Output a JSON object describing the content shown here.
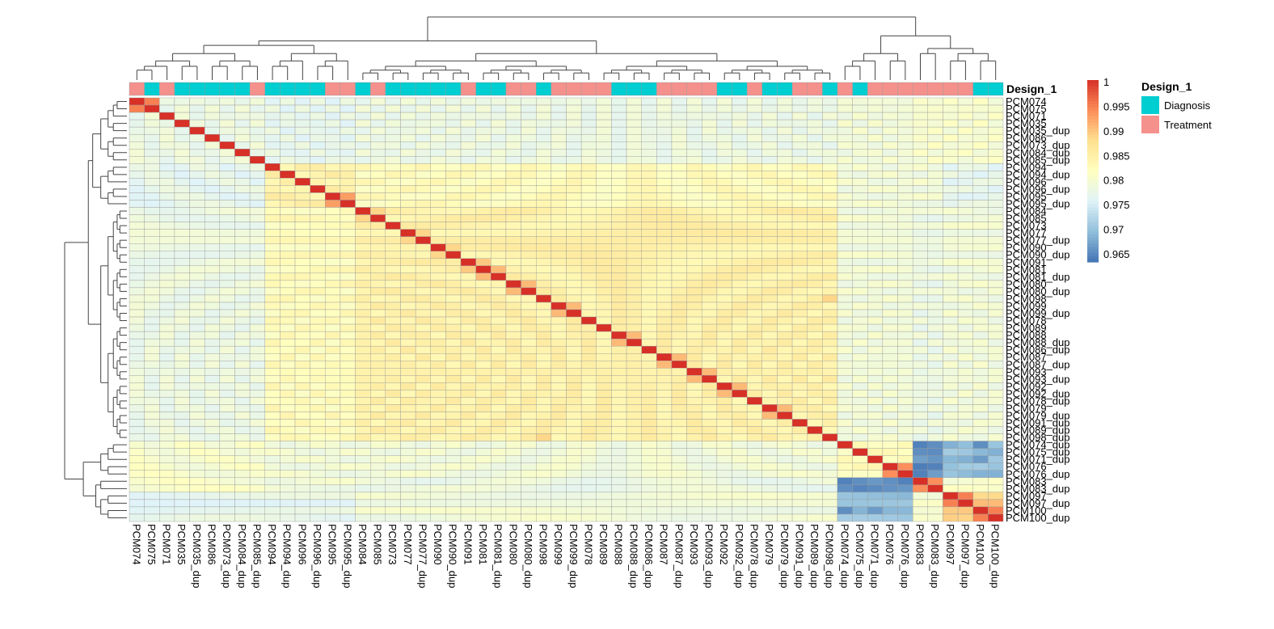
{
  "chart_data": {
    "type": "heatmap",
    "samples": [
      "PCM074",
      "PCM075",
      "PCM071",
      "PCM035",
      "PCM035_dup",
      "PCM086",
      "PCM073_dup",
      "PCM084_dup",
      "PCM085_dup",
      "PCM094",
      "PCM094_dup",
      "PCM096",
      "PCM096_dup",
      "PCM095",
      "PCM095_dup",
      "PCM084",
      "PCM085",
      "PCM073",
      "PCM077",
      "PCM077_dup",
      "PCM090",
      "PCM090_dup",
      "PCM091",
      "PCM081",
      "PCM081_dup",
      "PCM080",
      "PCM080_dup",
      "PCM098",
      "PCM099",
      "PCM099_dup",
      "PCM078",
      "PCM089",
      "PCM088",
      "PCM088_dup",
      "PCM086_dup",
      "PCM087",
      "PCM087_dup",
      "PCM093",
      "PCM093_dup",
      "PCM092",
      "PCM092_dup",
      "PCM078_dup",
      "PCM079",
      "PCM079_dup",
      "PCM091_dup",
      "PCM089_dup",
      "PCM098_dup",
      "PCM074_dup",
      "PCM075_dup",
      "PCM071_dup",
      "PCM076",
      "PCM076_dup",
      "PCM083",
      "PCM083_dup",
      "PCM097",
      "PCM097_dup",
      "PCM100",
      "PCM100_dup"
    ],
    "annotation_name": "Design_1",
    "annotation_values": [
      "Treatment",
      "Diagnosis",
      "Treatment",
      "Diagnosis",
      "Diagnosis",
      "Diagnosis",
      "Diagnosis",
      "Diagnosis",
      "Treatment",
      "Diagnosis",
      "Diagnosis",
      "Diagnosis",
      "Diagnosis",
      "Treatment",
      "Treatment",
      "Diagnosis",
      "Treatment",
      "Diagnosis",
      "Diagnosis",
      "Diagnosis",
      "Diagnosis",
      "Diagnosis",
      "Treatment",
      "Diagnosis",
      "Diagnosis",
      "Treatment",
      "Treatment",
      "Diagnosis",
      "Treatment",
      "Treatment",
      "Treatment",
      "Treatment",
      "Diagnosis",
      "Diagnosis",
      "Diagnosis",
      "Treatment",
      "Treatment",
      "Treatment",
      "Treatment",
      "Diagnosis",
      "Diagnosis",
      "Treatment",
      "Diagnosis",
      "Diagnosis",
      "Treatment",
      "Treatment",
      "Diagnosis",
      "Treatment",
      "Diagnosis",
      "Treatment",
      "Treatment",
      "Treatment",
      "Treatment",
      "Treatment",
      "Treatment",
      "Treatment",
      "Diagnosis",
      "Diagnosis"
    ],
    "groups": [
      [
        0,
        8
      ],
      [
        9,
        14
      ],
      [
        15,
        46
      ],
      [
        47,
        51
      ],
      [
        52,
        53
      ],
      [
        54,
        57
      ]
    ],
    "group_levels": [
      [
        0.979,
        0.978,
        0.979,
        0.98,
        0.981,
        0.981
      ],
      [
        0.978,
        0.985,
        0.983,
        0.98,
        0.98,
        0.978
      ],
      [
        0.979,
        0.983,
        0.985,
        0.98,
        0.979,
        0.98
      ],
      [
        0.981,
        0.98,
        0.98,
        0.983,
        0.967,
        0.971
      ],
      [
        0.981,
        0.98,
        0.979,
        0.967,
        0.995,
        0.981
      ],
      [
        0.978,
        0.978,
        0.98,
        0.971,
        0.981,
        0.99
      ]
    ],
    "pair_overrides": [
      [
        0,
        1,
        0.995
      ],
      [
        1,
        0,
        0.995
      ],
      [
        13,
        14,
        0.993
      ],
      [
        14,
        13,
        0.993
      ],
      [
        22,
        23,
        0.99
      ],
      [
        23,
        22,
        0.99
      ],
      [
        23,
        24,
        0.991
      ],
      [
        24,
        23,
        0.991
      ],
      [
        25,
        26,
        0.991
      ],
      [
        26,
        25,
        0.991
      ],
      [
        28,
        29,
        0.991
      ],
      [
        29,
        28,
        0.991
      ],
      [
        32,
        33,
        0.991
      ],
      [
        33,
        32,
        0.991
      ],
      [
        35,
        36,
        0.991
      ],
      [
        36,
        35,
        0.991
      ],
      [
        37,
        38,
        0.991
      ],
      [
        38,
        37,
        0.991
      ],
      [
        39,
        40,
        0.991
      ],
      [
        40,
        39,
        0.991
      ],
      [
        42,
        43,
        0.991
      ],
      [
        43,
        42,
        0.991
      ],
      [
        52,
        53,
        0.994
      ],
      [
        53,
        52,
        0.994
      ],
      [
        54,
        55,
        0.995
      ],
      [
        55,
        54,
        0.995
      ],
      [
        56,
        57,
        0.995
      ],
      [
        57,
        56,
        0.995
      ],
      [
        50,
        51,
        0.994
      ],
      [
        51,
        50,
        0.994
      ],
      [
        15,
        16,
        0.989
      ],
      [
        16,
        15,
        0.989
      ],
      [
        18,
        19,
        0.989
      ],
      [
        19,
        18,
        0.989
      ],
      [
        20,
        21,
        0.989
      ],
      [
        21,
        20,
        0.989
      ],
      [
        46,
        27,
        0.989
      ],
      [
        27,
        46,
        0.989
      ],
      [
        47,
        52,
        0.966
      ],
      [
        52,
        47,
        0.966
      ],
      [
        48,
        52,
        0.967
      ],
      [
        52,
        48,
        0.967
      ],
      [
        51,
        52,
        0.966
      ],
      [
        52,
        51,
        0.966
      ],
      [
        47,
        53,
        0.967
      ],
      [
        53,
        47,
        0.967
      ],
      [
        49,
        56,
        0.968
      ],
      [
        56,
        49,
        0.968
      ],
      [
        47,
        56,
        0.967
      ],
      [
        56,
        47,
        0.967
      ]
    ],
    "legend_min": 0.965,
    "legend_max": 1,
    "legend_ticks": [
      "1",
      "0.995",
      "0.99",
      "0.985",
      "0.98",
      "0.975",
      "0.97",
      "0.965"
    ],
    "legend_tick_values": [
      1,
      0.995,
      0.99,
      0.985,
      0.98,
      0.975,
      0.97,
      0.965
    ],
    "color_scale": [
      "#4575B4",
      "#91BFDB",
      "#E0F3F8",
      "#FFFFBF",
      "#FEE090",
      "#FC8D59",
      "#D73027"
    ],
    "annotation_legend": [
      {
        "label": "Diagnosis",
        "color": "#00CED1"
      },
      {
        "label": "Treatment",
        "color": "#F4918D"
      }
    ],
    "grid": true
  },
  "annotation_label": "Design_1",
  "legend_title": "Design_1"
}
